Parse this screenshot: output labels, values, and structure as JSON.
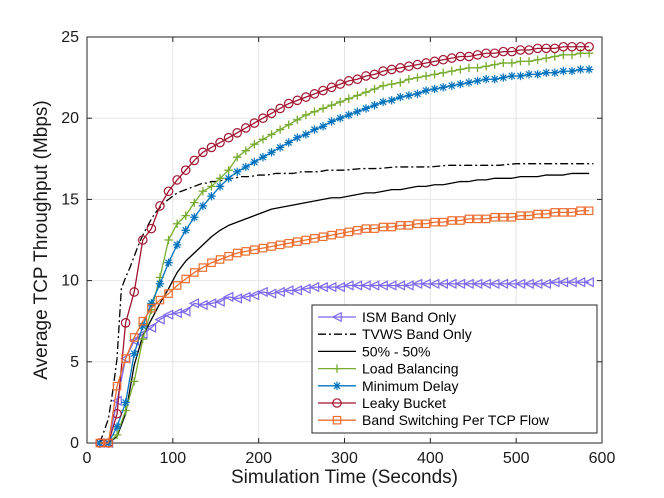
{
  "chart_data": {
    "type": "line",
    "title": "",
    "xlabel": "Simulation Time (Seconds)",
    "ylabel": "Average TCP Throughput (Mbps)",
    "xlim": [
      0,
      600
    ],
    "ylim": [
      0,
      25
    ],
    "xticks": [
      0,
      100,
      200,
      300,
      400,
      500,
      600
    ],
    "yticks": [
      0,
      5,
      10,
      15,
      20,
      25
    ],
    "grid": true,
    "legend_position": "bottom-right",
    "series": [
      {
        "name": "ISM Band Only",
        "color": "#7b68ee",
        "line": "solid",
        "marker": "triangle-left",
        "x": [
          15,
          25,
          35,
          45,
          55,
          65,
          75,
          85,
          95,
          105,
          115,
          125,
          135,
          145,
          155,
          165,
          175,
          185,
          195,
          205,
          215,
          225,
          235,
          245,
          255,
          265,
          275,
          285,
          295,
          305,
          315,
          325,
          335,
          345,
          355,
          365,
          375,
          385,
          395,
          405,
          415,
          425,
          435,
          445,
          455,
          465,
          475,
          485,
          495,
          505,
          515,
          525,
          535,
          545,
          555,
          565,
          575,
          585
        ],
        "y": [
          0.0,
          0.0,
          2.6,
          5.2,
          6.3,
          6.7,
          7.1,
          7.6,
          7.9,
          8.0,
          8.1,
          8.6,
          8.5,
          8.6,
          8.7,
          9.0,
          8.9,
          9.0,
          9.1,
          9.3,
          9.2,
          9.3,
          9.4,
          9.4,
          9.5,
          9.6,
          9.6,
          9.6,
          9.6,
          9.7,
          9.7,
          9.7,
          9.7,
          9.7,
          9.7,
          9.7,
          9.7,
          9.8,
          9.8,
          9.8,
          9.8,
          9.8,
          9.8,
          9.8,
          9.8,
          9.8,
          9.8,
          9.8,
          9.8,
          9.8,
          9.8,
          9.8,
          9.8,
          9.9,
          9.9,
          9.9,
          9.9,
          9.9
        ]
      },
      {
        "name": "TVWS Band Only",
        "color": "#000000",
        "line": "dashdot",
        "marker": "none",
        "x": [
          15,
          25,
          30,
          35,
          40,
          45,
          50,
          55,
          60,
          65,
          70,
          75,
          80,
          85,
          90,
          95,
          100,
          105,
          110,
          115,
          120,
          125,
          130,
          135,
          140,
          145,
          150,
          160,
          170,
          180,
          190,
          200,
          210,
          220,
          230,
          240,
          250,
          260,
          270,
          280,
          290,
          300,
          320,
          340,
          360,
          380,
          400,
          420,
          440,
          460,
          480,
          500,
          520,
          540,
          560,
          580,
          590
        ],
        "y": [
          0.0,
          1.5,
          3.2,
          5.2,
          9.5,
          10.2,
          10.8,
          11.5,
          12.2,
          12.8,
          13.3,
          13.8,
          14.2,
          14.5,
          14.8,
          15.0,
          15.2,
          15.4,
          15.5,
          15.6,
          15.7,
          15.8,
          15.9,
          16.0,
          16.0,
          16.1,
          16.1,
          16.2,
          16.3,
          16.4,
          16.4,
          16.5,
          16.5,
          16.6,
          16.6,
          16.6,
          16.7,
          16.7,
          16.7,
          16.8,
          16.8,
          16.8,
          16.9,
          16.9,
          17.0,
          17.0,
          17.0,
          17.1,
          17.1,
          17.1,
          17.1,
          17.2,
          17.2,
          17.2,
          17.2,
          17.2,
          17.2
        ]
      },
      {
        "name": "50% - 50%",
        "color": "#000000",
        "line": "solid",
        "marker": "none",
        "x": [
          15,
          25,
          35,
          45,
          55,
          65,
          75,
          85,
          95,
          105,
          115,
          125,
          135,
          145,
          155,
          165,
          175,
          185,
          195,
          205,
          215,
          225,
          235,
          245,
          255,
          265,
          275,
          285,
          295,
          305,
          315,
          325,
          335,
          345,
          355,
          365,
          375,
          385,
          395,
          405,
          415,
          425,
          435,
          445,
          455,
          465,
          475,
          485,
          495,
          505,
          515,
          525,
          535,
          545,
          555,
          565,
          575,
          585
        ],
        "y": [
          0.0,
          0.0,
          0.4,
          1.8,
          4.8,
          6.6,
          7.6,
          8.6,
          9.5,
          10.5,
          11.2,
          11.7,
          12.2,
          12.7,
          13.1,
          13.4,
          13.6,
          13.8,
          14.0,
          14.2,
          14.4,
          14.5,
          14.6,
          14.7,
          14.8,
          14.9,
          15.0,
          15.1,
          15.1,
          15.2,
          15.3,
          15.4,
          15.4,
          15.5,
          15.6,
          15.6,
          15.7,
          15.8,
          15.8,
          15.9,
          15.9,
          16.0,
          16.1,
          16.1,
          16.2,
          16.2,
          16.3,
          16.3,
          16.3,
          16.4,
          16.4,
          16.4,
          16.5,
          16.5,
          16.5,
          16.6,
          16.6,
          16.6
        ]
      },
      {
        "name": "Load Balancing",
        "color": "#77ac30",
        "line": "solid",
        "marker": "plus",
        "x": [
          15,
          25,
          35,
          45,
          55,
          65,
          75,
          85,
          95,
          105,
          115,
          125,
          135,
          145,
          155,
          165,
          175,
          185,
          195,
          205,
          215,
          225,
          235,
          245,
          255,
          265,
          275,
          285,
          295,
          305,
          315,
          325,
          335,
          345,
          355,
          365,
          375,
          385,
          395,
          405,
          415,
          425,
          435,
          445,
          455,
          465,
          475,
          485,
          495,
          505,
          515,
          525,
          535,
          545,
          555,
          565,
          575,
          585
        ],
        "y": [
          0.0,
          0.0,
          0.5,
          2.0,
          3.8,
          6.4,
          8.2,
          10.2,
          12.5,
          13.5,
          14.0,
          14.8,
          15.5,
          15.8,
          16.3,
          16.8,
          17.6,
          18.0,
          18.4,
          18.7,
          19.0,
          19.3,
          19.6,
          19.9,
          20.2,
          20.4,
          20.6,
          20.8,
          21.0,
          21.2,
          21.4,
          21.6,
          21.8,
          22.0,
          22.1,
          22.2,
          22.4,
          22.5,
          22.6,
          22.7,
          22.8,
          22.9,
          23.0,
          23.1,
          23.1,
          23.2,
          23.3,
          23.4,
          23.4,
          23.5,
          23.5,
          23.6,
          23.7,
          23.8,
          23.9,
          23.9,
          24.0,
          24.0
        ]
      },
      {
        "name": "Minimum Delay",
        "color": "#0072bd",
        "line": "solid",
        "marker": "asterisk",
        "x": [
          15,
          25,
          35,
          45,
          55,
          65,
          75,
          85,
          95,
          105,
          115,
          125,
          135,
          145,
          155,
          165,
          175,
          185,
          195,
          205,
          215,
          225,
          235,
          245,
          255,
          265,
          275,
          285,
          295,
          305,
          315,
          325,
          335,
          345,
          355,
          365,
          375,
          385,
          395,
          405,
          415,
          425,
          435,
          445,
          455,
          465,
          475,
          485,
          495,
          505,
          515,
          525,
          535,
          545,
          555,
          565,
          575,
          585
        ],
        "y": [
          0.0,
          0.0,
          1.0,
          2.5,
          5.5,
          7.2,
          8.6,
          9.8,
          11.1,
          12.2,
          13.1,
          13.9,
          14.6,
          15.2,
          15.8,
          16.3,
          16.7,
          17.0,
          17.3,
          17.6,
          17.9,
          18.2,
          18.5,
          18.8,
          19.0,
          19.3,
          19.5,
          19.8,
          20.0,
          20.2,
          20.4,
          20.6,
          20.8,
          21.0,
          21.1,
          21.3,
          21.4,
          21.5,
          21.7,
          21.8,
          21.9,
          22.0,
          22.1,
          22.2,
          22.3,
          22.4,
          22.4,
          22.5,
          22.6,
          22.6,
          22.7,
          22.7,
          22.8,
          22.8,
          22.9,
          22.9,
          23.0,
          23.0
        ]
      },
      {
        "name": "Leaky Bucket",
        "color": "#a2142f",
        "line": "solid",
        "marker": "circle",
        "x": [
          15,
          25,
          35,
          45,
          55,
          65,
          75,
          85,
          95,
          105,
          115,
          125,
          135,
          145,
          155,
          165,
          175,
          185,
          195,
          205,
          215,
          225,
          235,
          245,
          255,
          265,
          275,
          285,
          295,
          305,
          315,
          325,
          335,
          345,
          355,
          365,
          375,
          385,
          395,
          405,
          415,
          425,
          435,
          445,
          455,
          465,
          475,
          485,
          495,
          505,
          515,
          525,
          535,
          545,
          555,
          565,
          575,
          585
        ],
        "y": [
          0.0,
          0.0,
          1.8,
          7.4,
          9.3,
          12.5,
          13.2,
          14.6,
          15.5,
          16.2,
          16.8,
          17.4,
          17.9,
          18.2,
          18.5,
          18.8,
          19.1,
          19.4,
          19.7,
          20.0,
          20.3,
          20.6,
          20.9,
          21.1,
          21.3,
          21.5,
          21.7,
          21.9,
          22.1,
          22.3,
          22.4,
          22.6,
          22.7,
          22.9,
          23.0,
          23.1,
          23.2,
          23.3,
          23.4,
          23.5,
          23.6,
          23.7,
          23.8,
          23.8,
          23.9,
          24.0,
          24.0,
          24.1,
          24.1,
          24.2,
          24.2,
          24.3,
          24.3,
          24.3,
          24.4,
          24.4,
          24.4,
          24.4
        ]
      },
      {
        "name": "Band Switching Per TCP Flow",
        "color": "#ec6d2f",
        "line": "solid",
        "marker": "square",
        "x": [
          15,
          25,
          35,
          45,
          55,
          65,
          75,
          85,
          95,
          105,
          115,
          125,
          135,
          145,
          155,
          165,
          175,
          185,
          195,
          205,
          215,
          225,
          235,
          245,
          255,
          265,
          275,
          285,
          295,
          305,
          315,
          325,
          335,
          345,
          355,
          365,
          375,
          385,
          395,
          405,
          415,
          425,
          435,
          445,
          455,
          465,
          475,
          485,
          495,
          505,
          515,
          525,
          535,
          545,
          555,
          565,
          575,
          585
        ],
        "y": [
          0.0,
          0.0,
          3.5,
          5.2,
          6.5,
          7.5,
          8.3,
          8.8,
          9.2,
          9.7,
          10.1,
          10.5,
          10.8,
          11.1,
          11.3,
          11.5,
          11.7,
          11.8,
          11.9,
          12.0,
          12.1,
          12.2,
          12.3,
          12.4,
          12.5,
          12.6,
          12.7,
          12.8,
          12.9,
          13.0,
          13.1,
          13.2,
          13.2,
          13.3,
          13.3,
          13.4,
          13.4,
          13.5,
          13.5,
          13.6,
          13.6,
          13.7,
          13.7,
          13.8,
          13.8,
          13.8,
          13.9,
          13.9,
          13.9,
          14.0,
          14.0,
          14.1,
          14.1,
          14.2,
          14.2,
          14.2,
          14.3,
          14.3
        ]
      }
    ]
  }
}
